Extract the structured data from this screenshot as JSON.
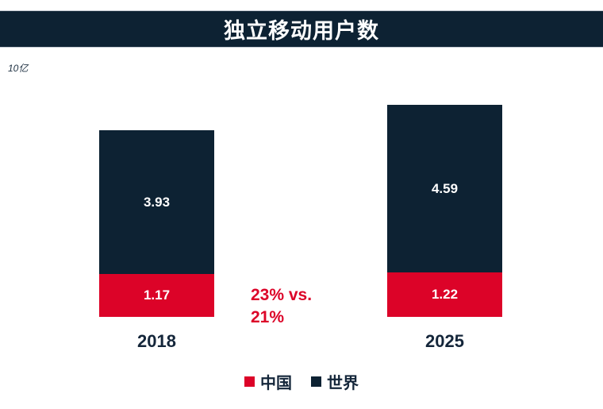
{
  "chart_data": {
    "type": "stacked-bar",
    "title": "独立移动用户数",
    "unit_label": "10亿",
    "categories": [
      "2018",
      "2025"
    ],
    "series": [
      {
        "key": "china",
        "name": "中国",
        "color": "#dc0328",
        "values": [
          1.17,
          1.22
        ],
        "labels": [
          "1.17",
          "1.22"
        ]
      },
      {
        "key": "world",
        "name": "世界",
        "color": "#0d2233",
        "values": [
          3.93,
          4.59
        ],
        "labels": [
          "3.93",
          "4.59"
        ]
      }
    ],
    "annotation_lines": [
      "23% vs.",
      "21%"
    ],
    "legend_position": "bottom",
    "axes": "hidden",
    "grid": false
  },
  "colors": {
    "navy": "#0d2233",
    "red": "#dc0328",
    "header_bg": "#0d2233",
    "annotation": "#dc0328"
  }
}
